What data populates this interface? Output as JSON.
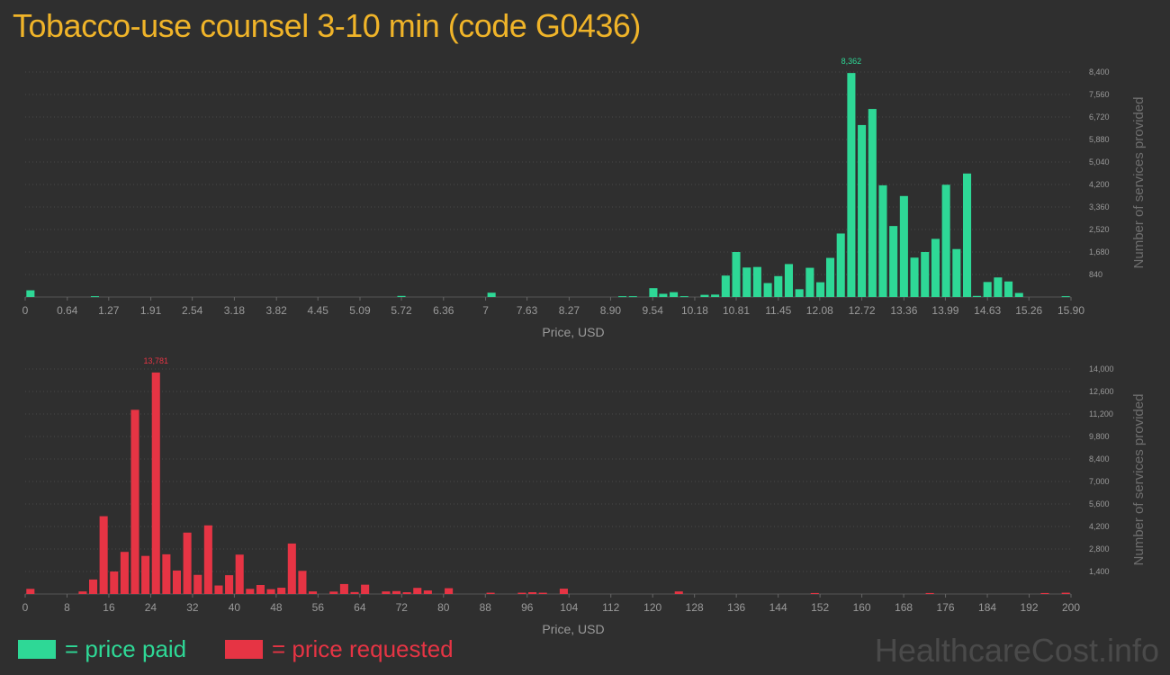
{
  "title": "Tobacco-use counsel 3-10 min (code G0436)",
  "legend": {
    "paid": {
      "label": "= price paid",
      "color": "#2ed896"
    },
    "requested": {
      "label": "= price requested",
      "color": "#e63444"
    }
  },
  "watermark": "HealthcareCost.info",
  "colors": {
    "background": "#2f2f2f",
    "title": "#f0b429",
    "grid": "#4a4a4a",
    "axis_text": "#9a9a9a"
  },
  "chart_data": [
    {
      "type": "bar",
      "series_name": "price paid",
      "color": "#2ed896",
      "xlabel": "Price, USD",
      "ylabel": "Number of services provided",
      "xlim": [
        0,
        15.9
      ],
      "ylim": [
        0,
        8400
      ],
      "x_ticks": [
        "0",
        "0.64",
        "1.27",
        "1.91",
        "2.54",
        "3.18",
        "3.82",
        "4.45",
        "5.09",
        "5.72",
        "6.36",
        "7",
        "7.63",
        "8.27",
        "8.90",
        "9.54",
        "10.18",
        "10.81",
        "11.45",
        "12.08",
        "12.72",
        "13.36",
        "13.99",
        "14.63",
        "15.26",
        "15.90"
      ],
      "y_ticks": [
        "840",
        "1,680",
        "2,520",
        "3,360",
        "4,200",
        "5,040",
        "5,880",
        "6,720",
        "7,560",
        "8,400"
      ],
      "max_label": "8,362",
      "bins": [
        [
          0.08,
          250
        ],
        [
          1.06,
          30
        ],
        [
          5.72,
          40
        ],
        [
          7.09,
          160
        ],
        [
          9.08,
          30
        ],
        [
          9.24,
          30
        ],
        [
          9.55,
          330
        ],
        [
          9.7,
          120
        ],
        [
          9.86,
          180
        ],
        [
          10.02,
          30
        ],
        [
          10.33,
          80
        ],
        [
          10.49,
          90
        ],
        [
          10.65,
          800
        ],
        [
          10.81,
          1680
        ],
        [
          10.97,
          1100
        ],
        [
          11.13,
          1120
        ],
        [
          11.29,
          520
        ],
        [
          11.45,
          780
        ],
        [
          11.61,
          1230
        ],
        [
          11.77,
          290
        ],
        [
          11.93,
          1090
        ],
        [
          12.09,
          550
        ],
        [
          12.24,
          1460
        ],
        [
          12.4,
          2370
        ],
        [
          12.56,
          8362
        ],
        [
          12.72,
          6420
        ],
        [
          12.88,
          7020
        ],
        [
          13.04,
          4170
        ],
        [
          13.2,
          2650
        ],
        [
          13.36,
          3770
        ],
        [
          13.52,
          1470
        ],
        [
          13.68,
          1680
        ],
        [
          13.84,
          2170
        ],
        [
          14.0,
          4190
        ],
        [
          14.16,
          1790
        ],
        [
          14.32,
          4610
        ],
        [
          14.47,
          40
        ],
        [
          14.63,
          560
        ],
        [
          14.79,
          730
        ],
        [
          14.95,
          580
        ],
        [
          15.11,
          150
        ],
        [
          15.82,
          30
        ]
      ]
    },
    {
      "type": "bar",
      "series_name": "price requested",
      "color": "#e63444",
      "xlabel": "Price, USD",
      "ylabel": "Number of services provided",
      "xlim": [
        0,
        200
      ],
      "ylim": [
        0,
        14000
      ],
      "x_ticks": [
        "0",
        "8",
        "16",
        "24",
        "32",
        "40",
        "48",
        "56",
        "64",
        "72",
        "80",
        "88",
        "96",
        "104",
        "112",
        "120",
        "128",
        "136",
        "144",
        "152",
        "160",
        "168",
        "176",
        "184",
        "192",
        "200"
      ],
      "y_ticks": [
        "1,400",
        "2,800",
        "4,200",
        "5,600",
        "7,000",
        "8,400",
        "9,800",
        "11,200",
        "12,600",
        "14,000"
      ],
      "max_label": "13,781",
      "bins": [
        [
          1,
          320
        ],
        [
          11,
          160
        ],
        [
          13,
          900
        ],
        [
          15,
          4840
        ],
        [
          17,
          1400
        ],
        [
          19,
          2620
        ],
        [
          21,
          11460
        ],
        [
          23,
          2370
        ],
        [
          25,
          13781
        ],
        [
          27,
          2470
        ],
        [
          29,
          1460
        ],
        [
          31,
          3820
        ],
        [
          33,
          1190
        ],
        [
          35,
          4270
        ],
        [
          37,
          530
        ],
        [
          39,
          1170
        ],
        [
          41,
          2450
        ],
        [
          43,
          320
        ],
        [
          45,
          560
        ],
        [
          47,
          300
        ],
        [
          49,
          390
        ],
        [
          51,
          3140
        ],
        [
          53,
          1440
        ],
        [
          55,
          160
        ],
        [
          59,
          150
        ],
        [
          61,
          620
        ],
        [
          63,
          120
        ],
        [
          65,
          580
        ],
        [
          69,
          160
        ],
        [
          71,
          180
        ],
        [
          73,
          110
        ],
        [
          75,
          380
        ],
        [
          77,
          220
        ],
        [
          81,
          360
        ],
        [
          89,
          80
        ],
        [
          95,
          80
        ],
        [
          97,
          110
        ],
        [
          99,
          80
        ],
        [
          103,
          330
        ],
        [
          125,
          160
        ],
        [
          151,
          60
        ],
        [
          173,
          60
        ],
        [
          195,
          60
        ],
        [
          199,
          80
        ]
      ]
    }
  ]
}
